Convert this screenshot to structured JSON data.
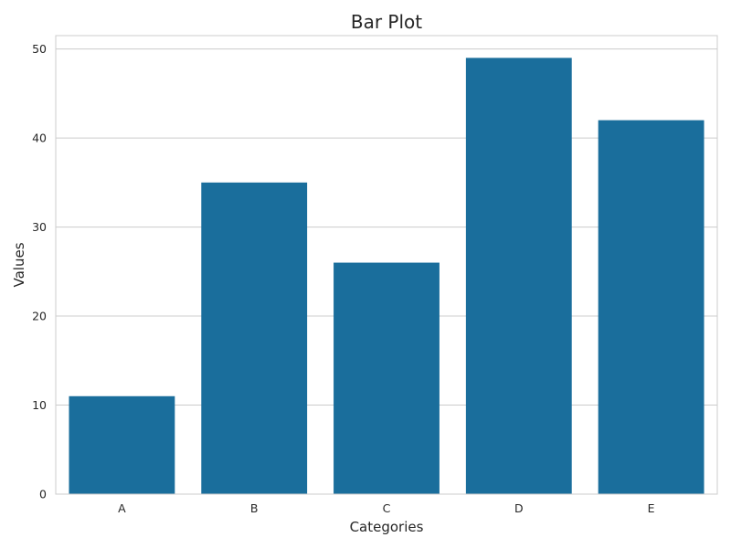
{
  "chart_data": {
    "type": "bar",
    "title": "Bar Plot",
    "xlabel": "Categories",
    "ylabel": "Values",
    "categories": [
      "A",
      "B",
      "C",
      "D",
      "E"
    ],
    "values": [
      11,
      35,
      26,
      49,
      42
    ],
    "ylim": [
      0,
      51.5
    ],
    "yticks": [
      0,
      10,
      20,
      30,
      40,
      50
    ],
    "grid": "horizontal",
    "bar_color": "#1a6e9c",
    "grid_color": "#cccccc",
    "text_color": "#262626"
  }
}
